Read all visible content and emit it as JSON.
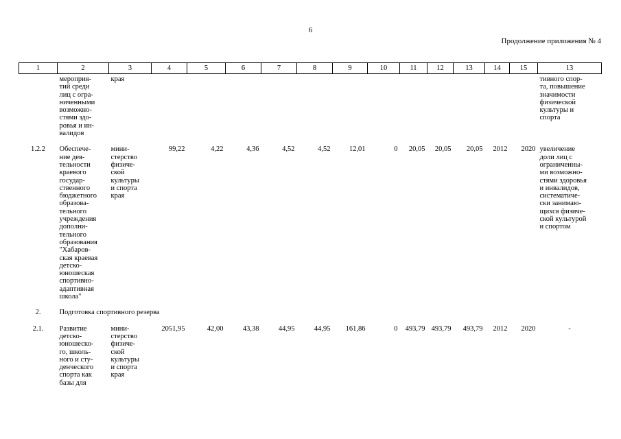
{
  "page_number": "6",
  "continuation": "Продолжение приложения № 4",
  "table": {
    "header": [
      "1",
      "2",
      "3",
      "4",
      "5",
      "6",
      "7",
      "8",
      "9",
      "10",
      "11",
      "12",
      "13",
      "14",
      "15",
      "13"
    ],
    "rows": [
      [
        [],
        [
          "мероприя-",
          "тий среди",
          "лиц с огра-",
          "ниченными",
          "возможно-",
          "стями здо-",
          "ровья и ин-",
          "валидов"
        ],
        [
          "края"
        ],
        "",
        "",
        "",
        "",
        "",
        "",
        "",
        "",
        "",
        "",
        "",
        "",
        [
          "тивного спор-",
          "та, повышение",
          "значимости",
          "физической",
          "культуры и",
          "спорта"
        ]
      ],
      [
        "1.2.2",
        [
          "Обеспече-",
          "ние дея-",
          "тельности",
          "краевого",
          "государ-",
          "ственного",
          "бюджетного",
          "образова-",
          "тельного",
          "учреждения",
          "дополни-",
          "тельного",
          "образования",
          "\"Хабаров-",
          "ская краевая",
          "детско-",
          "юношеская",
          "спортивно-",
          "адаптивная",
          "школа\""
        ],
        [
          "мини-",
          "стерство",
          "физиче-",
          "ской",
          "культуры",
          "и спорта",
          "края"
        ],
        "99,22",
        "4,22",
        "4,36",
        "4,52",
        "4,52",
        "12,01",
        "0",
        "20,05",
        "20,05",
        "20,05",
        "2012",
        "2020",
        [
          "увеличение",
          "доли лиц с",
          "ограниченны-",
          "ми возможно-",
          "стями здоровья",
          "и инвалидов,",
          "систематиче-",
          "ски занимаю-",
          "щихся физиче-",
          "ской культурой",
          "и спортом"
        ]
      ],
      [
        "2.",
        [
          "Подготовка спортивного резерва"
        ]
      ],
      [
        "2.1.",
        [
          "Развитие",
          "детско-",
          "юношеско-",
          "го, школь-",
          "ного и сту-",
          "денческого",
          "спорта как",
          "базы для"
        ],
        [
          "мини-",
          "стерство",
          "физиче-",
          "ской",
          "культуры",
          "и спорта",
          "края"
        ],
        "2051,95",
        "42,00",
        "43,38",
        "44,95",
        "44,95",
        "161,86",
        "0",
        "493,79",
        "493,79",
        "493,79",
        "2012",
        "2020",
        [
          "-"
        ]
      ]
    ]
  }
}
